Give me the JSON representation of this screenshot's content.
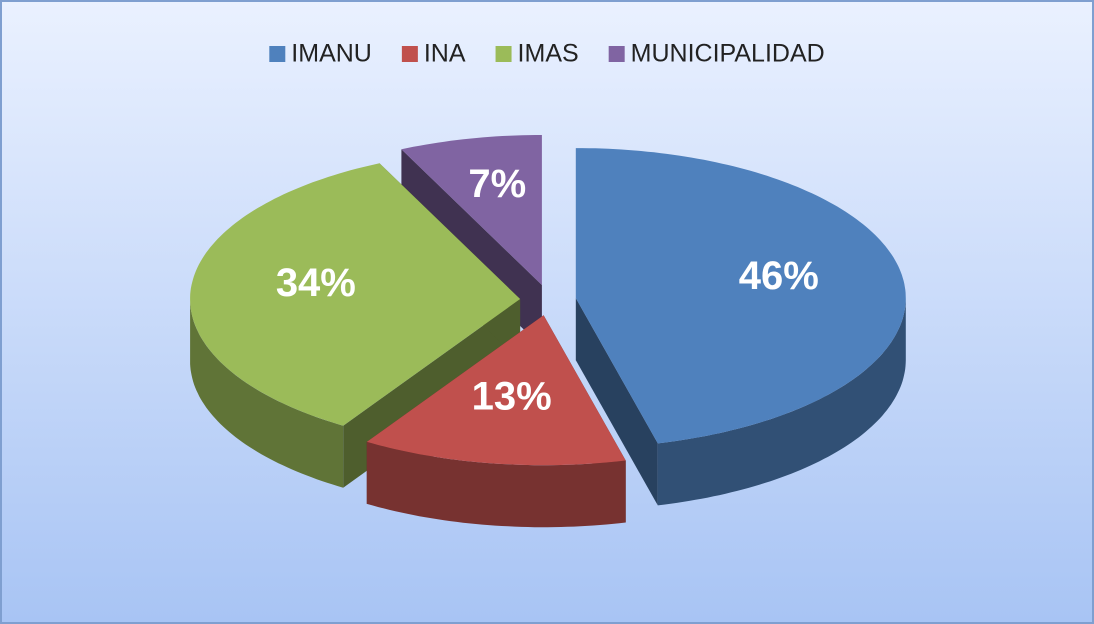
{
  "chart_data": {
    "type": "pie",
    "categories": [
      "IMANU",
      "INA",
      "IMAS",
      "MUNICIPALIDAD"
    ],
    "values": [
      46,
      13,
      34,
      7
    ],
    "value_labels": [
      "46%",
      "13%",
      "34%",
      "7%"
    ],
    "colors": [
      "#4f81bd",
      "#c0504d",
      "#9bbb59",
      "#8064a2"
    ],
    "legend": "top"
  }
}
